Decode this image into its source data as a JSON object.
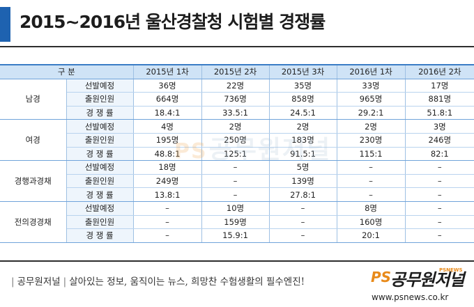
{
  "header": {
    "title": "2015~2016년 울산경찰청 시험별 경쟁률"
  },
  "table": {
    "header_label": "구 분",
    "columns": [
      "2015년 1차",
      "2015년 2차",
      "2015년 3차",
      "2016년 1차",
      "2016년 2차"
    ],
    "groups": [
      {
        "name": "남경",
        "rows": [
          {
            "label": "선발예정",
            "values": [
              "36명",
              "22명",
              "35명",
              "33명",
              "17명"
            ]
          },
          {
            "label": "출원인원",
            "values": [
              "664명",
              "736명",
              "858명",
              "965명",
              "881명"
            ]
          },
          {
            "label": "경 쟁 률",
            "values": [
              "18.4:1",
              "33.5:1",
              "24.5:1",
              "29.2:1",
              "51.8:1"
            ]
          }
        ]
      },
      {
        "name": "여경",
        "rows": [
          {
            "label": "선발예정",
            "values": [
              "4명",
              "2명",
              "2명",
              "2명",
              "3명"
            ]
          },
          {
            "label": "출원인원",
            "values": [
              "195명",
              "250명",
              "183명",
              "230명",
              "246명"
            ]
          },
          {
            "label": "경 쟁 률",
            "values": [
              "48.8:1",
              "125:1",
              "91.5:1",
              "115:1",
              "82:1"
            ]
          }
        ]
      },
      {
        "name": "경행과경채",
        "rows": [
          {
            "label": "선발예정",
            "values": [
              "18명",
              "–",
              "5명",
              "–",
              "–"
            ]
          },
          {
            "label": "출원인원",
            "values": [
              "249명",
              "–",
              "139명",
              "–",
              "–"
            ]
          },
          {
            "label": "경 쟁 률",
            "values": [
              "13.8:1",
              "–",
              "27.8:1",
              "–",
              "–"
            ]
          }
        ]
      },
      {
        "name": "전의경경채",
        "rows": [
          {
            "label": "선발예정",
            "values": [
              "–",
              "10명",
              "–",
              "8명",
              "–"
            ]
          },
          {
            "label": "출원인원",
            "values": [
              "–",
              "159명",
              "–",
              "160명",
              "–"
            ]
          },
          {
            "label": "경 쟁 률",
            "values": [
              "–",
              "15.9:1",
              "–",
              "20:1",
              "–"
            ]
          }
        ]
      }
    ]
  },
  "watermark": {
    "ps": "PS",
    "text": "공무원저널"
  },
  "footer": {
    "brand": "공무원저널",
    "slogan": "살아있는 정보, 움직이는 뉴스, 희망찬 수험생활의 필수엔진!",
    "logo_ps": "PS",
    "logo_brand": "공무원저널",
    "logo_sub": "PSNEWS",
    "url": "www.psnews.co.kr"
  },
  "colors": {
    "accent": "#1e62b0",
    "header_fill": "#cfe3f6",
    "item_fill": "#eef5fc",
    "logo_orange": "#e88a1a"
  }
}
